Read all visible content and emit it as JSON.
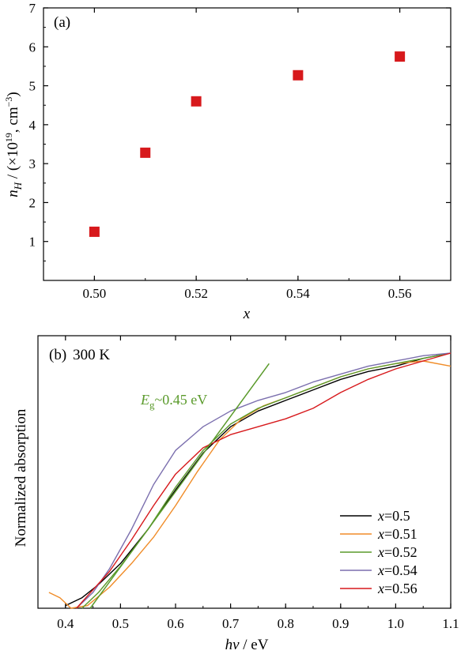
{
  "chart_data": [
    {
      "type": "scatter",
      "panel_label": "(a)",
      "xlabel": "x",
      "ylabel_main": "n",
      "ylabel_sub": "H",
      "ylabel_mid": " / (×10",
      "ylabel_exp": "19",
      "ylabel_unit": ", cm",
      "ylabel_unit_exp": "−3",
      "ylabel_end": ")",
      "xlim": [
        0.49,
        0.57
      ],
      "ylim": [
        0,
        7
      ],
      "xticks": [
        0.5,
        0.52,
        0.54,
        0.56
      ],
      "xtick_labels": [
        "0.50",
        "0.52",
        "0.54",
        "0.56"
      ],
      "yticks": [
        1,
        2,
        3,
        4,
        5,
        6,
        7
      ],
      "ytick_labels": [
        "1",
        "2",
        "3",
        "4",
        "5",
        "6",
        "7"
      ],
      "marker_color": "#d7191c",
      "points": [
        {
          "x": 0.5,
          "y": 1.25
        },
        {
          "x": 0.51,
          "y": 3.28
        },
        {
          "x": 0.52,
          "y": 4.6
        },
        {
          "x": 0.54,
          "y": 5.27
        },
        {
          "x": 0.56,
          "y": 5.75
        }
      ]
    },
    {
      "type": "line",
      "panel_label": "(b)",
      "temperature": "300 K",
      "xlabel_italic": "hν",
      "xlabel_unit": " / eV",
      "ylabel": "Normalized absorption",
      "xlim": [
        0.35,
        1.1
      ],
      "ylim": [
        0,
        1.0
      ],
      "xticks": [
        0.4,
        0.5,
        0.6,
        0.7,
        0.8,
        0.9,
        1.0,
        1.1
      ],
      "xtick_labels": [
        "0.4",
        "0.5",
        "0.6",
        "0.7",
        "0.8",
        "0.9",
        "1.0",
        "1.1"
      ],
      "annotation_main": "E",
      "annotation_sub": "g",
      "annotation_rest": "~0.45 eV",
      "annotation_color": "#5a9a2b",
      "tangent": {
        "color": "#5a9a2b",
        "x1": 0.445,
        "y1": 0.0,
        "x2": 0.77,
        "y2": 0.93
      },
      "legend_prefix": "x",
      "series": [
        {
          "name": "=0.5",
          "color": "#000000",
          "x": [
            0.4,
            0.43,
            0.46,
            0.5,
            0.55,
            0.6,
            0.65,
            0.7,
            0.75,
            0.8,
            0.85,
            0.9,
            0.95,
            1.0,
            1.05,
            1.1
          ],
          "y": [
            0.01,
            0.04,
            0.09,
            0.17,
            0.3,
            0.45,
            0.59,
            0.69,
            0.75,
            0.79,
            0.83,
            0.87,
            0.9,
            0.92,
            0.95,
            0.97
          ]
        },
        {
          "name": "=0.51",
          "color": "#f08c28",
          "x": [
            0.37,
            0.39,
            0.41,
            0.44,
            0.48,
            0.52,
            0.56,
            0.6,
            0.64,
            0.68,
            0.72,
            0.76,
            0.8,
            0.85,
            0.9,
            0.95,
            1.0,
            1.05,
            1.1
          ],
          "y": [
            0.06,
            0.04,
            0.0,
            0.01,
            0.08,
            0.17,
            0.27,
            0.39,
            0.52,
            0.64,
            0.72,
            0.77,
            0.8,
            0.84,
            0.88,
            0.91,
            0.93,
            0.94,
            0.92
          ]
        },
        {
          "name": "=0.52",
          "color": "#5a9a2b",
          "x": [
            0.43,
            0.46,
            0.5,
            0.55,
            0.6,
            0.65,
            0.7,
            0.75,
            0.8,
            0.85,
            0.9,
            0.95,
            1.0,
            1.05,
            1.1
          ],
          "y": [
            0.0,
            0.06,
            0.16,
            0.3,
            0.46,
            0.6,
            0.7,
            0.76,
            0.8,
            0.84,
            0.88,
            0.91,
            0.93,
            0.95,
            0.97
          ]
        },
        {
          "name": "=0.54",
          "color": "#7b6fae",
          "x": [
            0.42,
            0.45,
            0.48,
            0.52,
            0.56,
            0.6,
            0.65,
            0.7,
            0.75,
            0.8,
            0.85,
            0.9,
            0.95,
            1.0,
            1.05,
            1.1
          ],
          "y": [
            0.0,
            0.06,
            0.15,
            0.3,
            0.47,
            0.6,
            0.69,
            0.75,
            0.79,
            0.82,
            0.86,
            0.89,
            0.92,
            0.94,
            0.96,
            0.97
          ]
        },
        {
          "name": "=0.56",
          "color": "#d7191c",
          "x": [
            0.42,
            0.45,
            0.48,
            0.52,
            0.56,
            0.6,
            0.65,
            0.7,
            0.75,
            0.8,
            0.85,
            0.9,
            0.95,
            1.0,
            1.05,
            1.1
          ],
          "y": [
            0.0,
            0.07,
            0.14,
            0.26,
            0.39,
            0.51,
            0.61,
            0.66,
            0.69,
            0.72,
            0.76,
            0.82,
            0.87,
            0.91,
            0.94,
            0.97
          ]
        }
      ]
    }
  ]
}
